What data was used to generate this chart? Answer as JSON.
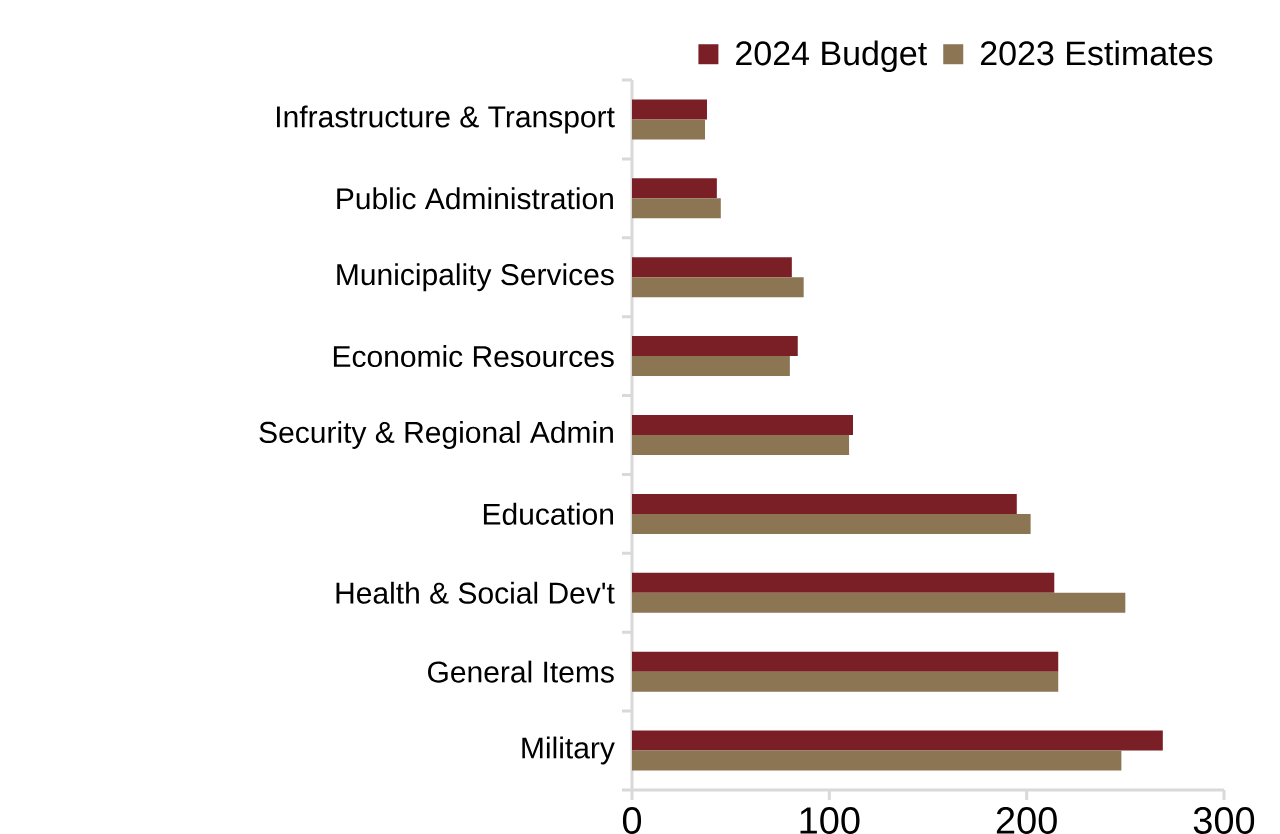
{
  "chart_data": {
    "type": "bar",
    "orientation": "horizontal",
    "categories": [
      "Infrastructure & Transport",
      "Public Administration",
      "Municipality Services",
      "Economic Resources",
      "Security & Regional Admin",
      "Education",
      "Health & Social Dev't",
      "General Items",
      "Military"
    ],
    "series": [
      {
        "name": "2024 Budget",
        "color": "#7b1f27",
        "values": [
          38,
          43,
          81,
          84,
          112,
          195,
          214,
          216,
          269
        ]
      },
      {
        "name": "2023 Estimates",
        "color": "#8b7553",
        "values": [
          37,
          45,
          87,
          80,
          110,
          202,
          250,
          216,
          248
        ]
      }
    ],
    "xlim": [
      0,
      300
    ],
    "xticks": [
      0,
      100,
      200,
      300
    ],
    "legend": "top right"
  }
}
